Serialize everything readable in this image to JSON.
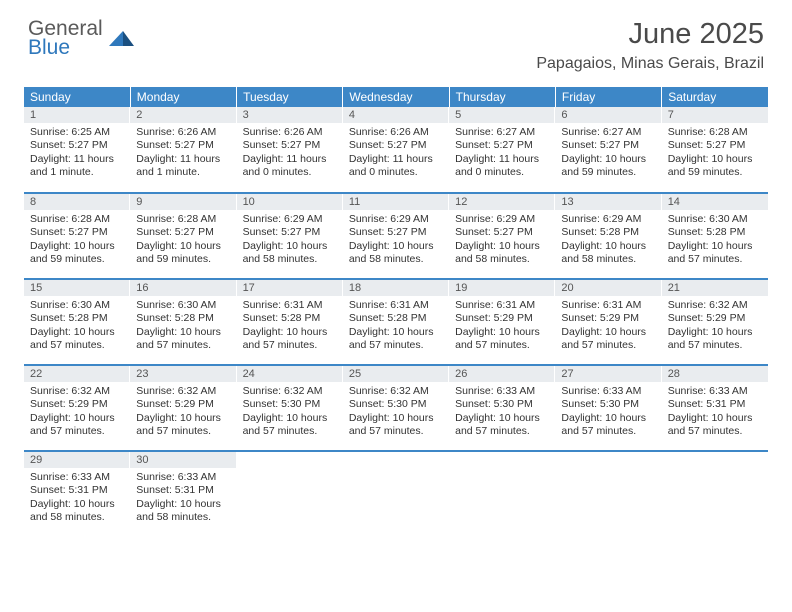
{
  "logo": {
    "text1": "General",
    "text2": "Blue"
  },
  "title": "June 2025",
  "location": "Papagaios, Minas Gerais, Brazil",
  "colors": {
    "headerBlue": "#3d87c7",
    "dayNumBg": "#e9ecef",
    "textGray": "#4a4a4a",
    "logoGray": "#5a5a5a",
    "logoBlue": "#2f78bc"
  },
  "dayHeaders": [
    "Sunday",
    "Monday",
    "Tuesday",
    "Wednesday",
    "Thursday",
    "Friday",
    "Saturday"
  ],
  "weeks": [
    [
      {
        "n": "1",
        "sunrise": "6:25 AM",
        "sunset": "5:27 PM",
        "daylight": "11 hours and 1 minute."
      },
      {
        "n": "2",
        "sunrise": "6:26 AM",
        "sunset": "5:27 PM",
        "daylight": "11 hours and 1 minute."
      },
      {
        "n": "3",
        "sunrise": "6:26 AM",
        "sunset": "5:27 PM",
        "daylight": "11 hours and 0 minutes."
      },
      {
        "n": "4",
        "sunrise": "6:26 AM",
        "sunset": "5:27 PM",
        "daylight": "11 hours and 0 minutes."
      },
      {
        "n": "5",
        "sunrise": "6:27 AM",
        "sunset": "5:27 PM",
        "daylight": "11 hours and 0 minutes."
      },
      {
        "n": "6",
        "sunrise": "6:27 AM",
        "sunset": "5:27 PM",
        "daylight": "10 hours and 59 minutes."
      },
      {
        "n": "7",
        "sunrise": "6:28 AM",
        "sunset": "5:27 PM",
        "daylight": "10 hours and 59 minutes."
      }
    ],
    [
      {
        "n": "8",
        "sunrise": "6:28 AM",
        "sunset": "5:27 PM",
        "daylight": "10 hours and 59 minutes."
      },
      {
        "n": "9",
        "sunrise": "6:28 AM",
        "sunset": "5:27 PM",
        "daylight": "10 hours and 59 minutes."
      },
      {
        "n": "10",
        "sunrise": "6:29 AM",
        "sunset": "5:27 PM",
        "daylight": "10 hours and 58 minutes."
      },
      {
        "n": "11",
        "sunrise": "6:29 AM",
        "sunset": "5:27 PM",
        "daylight": "10 hours and 58 minutes."
      },
      {
        "n": "12",
        "sunrise": "6:29 AM",
        "sunset": "5:27 PM",
        "daylight": "10 hours and 58 minutes."
      },
      {
        "n": "13",
        "sunrise": "6:29 AM",
        "sunset": "5:28 PM",
        "daylight": "10 hours and 58 minutes."
      },
      {
        "n": "14",
        "sunrise": "6:30 AM",
        "sunset": "5:28 PM",
        "daylight": "10 hours and 57 minutes."
      }
    ],
    [
      {
        "n": "15",
        "sunrise": "6:30 AM",
        "sunset": "5:28 PM",
        "daylight": "10 hours and 57 minutes."
      },
      {
        "n": "16",
        "sunrise": "6:30 AM",
        "sunset": "5:28 PM",
        "daylight": "10 hours and 57 minutes."
      },
      {
        "n": "17",
        "sunrise": "6:31 AM",
        "sunset": "5:28 PM",
        "daylight": "10 hours and 57 minutes."
      },
      {
        "n": "18",
        "sunrise": "6:31 AM",
        "sunset": "5:28 PM",
        "daylight": "10 hours and 57 minutes."
      },
      {
        "n": "19",
        "sunrise": "6:31 AM",
        "sunset": "5:29 PM",
        "daylight": "10 hours and 57 minutes."
      },
      {
        "n": "20",
        "sunrise": "6:31 AM",
        "sunset": "5:29 PM",
        "daylight": "10 hours and 57 minutes."
      },
      {
        "n": "21",
        "sunrise": "6:32 AM",
        "sunset": "5:29 PM",
        "daylight": "10 hours and 57 minutes."
      }
    ],
    [
      {
        "n": "22",
        "sunrise": "6:32 AM",
        "sunset": "5:29 PM",
        "daylight": "10 hours and 57 minutes."
      },
      {
        "n": "23",
        "sunrise": "6:32 AM",
        "sunset": "5:29 PM",
        "daylight": "10 hours and 57 minutes."
      },
      {
        "n": "24",
        "sunrise": "6:32 AM",
        "sunset": "5:30 PM",
        "daylight": "10 hours and 57 minutes."
      },
      {
        "n": "25",
        "sunrise": "6:32 AM",
        "sunset": "5:30 PM",
        "daylight": "10 hours and 57 minutes."
      },
      {
        "n": "26",
        "sunrise": "6:33 AM",
        "sunset": "5:30 PM",
        "daylight": "10 hours and 57 minutes."
      },
      {
        "n": "27",
        "sunrise": "6:33 AM",
        "sunset": "5:30 PM",
        "daylight": "10 hours and 57 minutes."
      },
      {
        "n": "28",
        "sunrise": "6:33 AM",
        "sunset": "5:31 PM",
        "daylight": "10 hours and 57 minutes."
      }
    ],
    [
      {
        "n": "29",
        "sunrise": "6:33 AM",
        "sunset": "5:31 PM",
        "daylight": "10 hours and 58 minutes."
      },
      {
        "n": "30",
        "sunrise": "6:33 AM",
        "sunset": "5:31 PM",
        "daylight": "10 hours and 58 minutes."
      },
      null,
      null,
      null,
      null,
      null
    ]
  ],
  "labels": {
    "sunrise": "Sunrise: ",
    "sunset": "Sunset: ",
    "daylight": "Daylight: "
  }
}
